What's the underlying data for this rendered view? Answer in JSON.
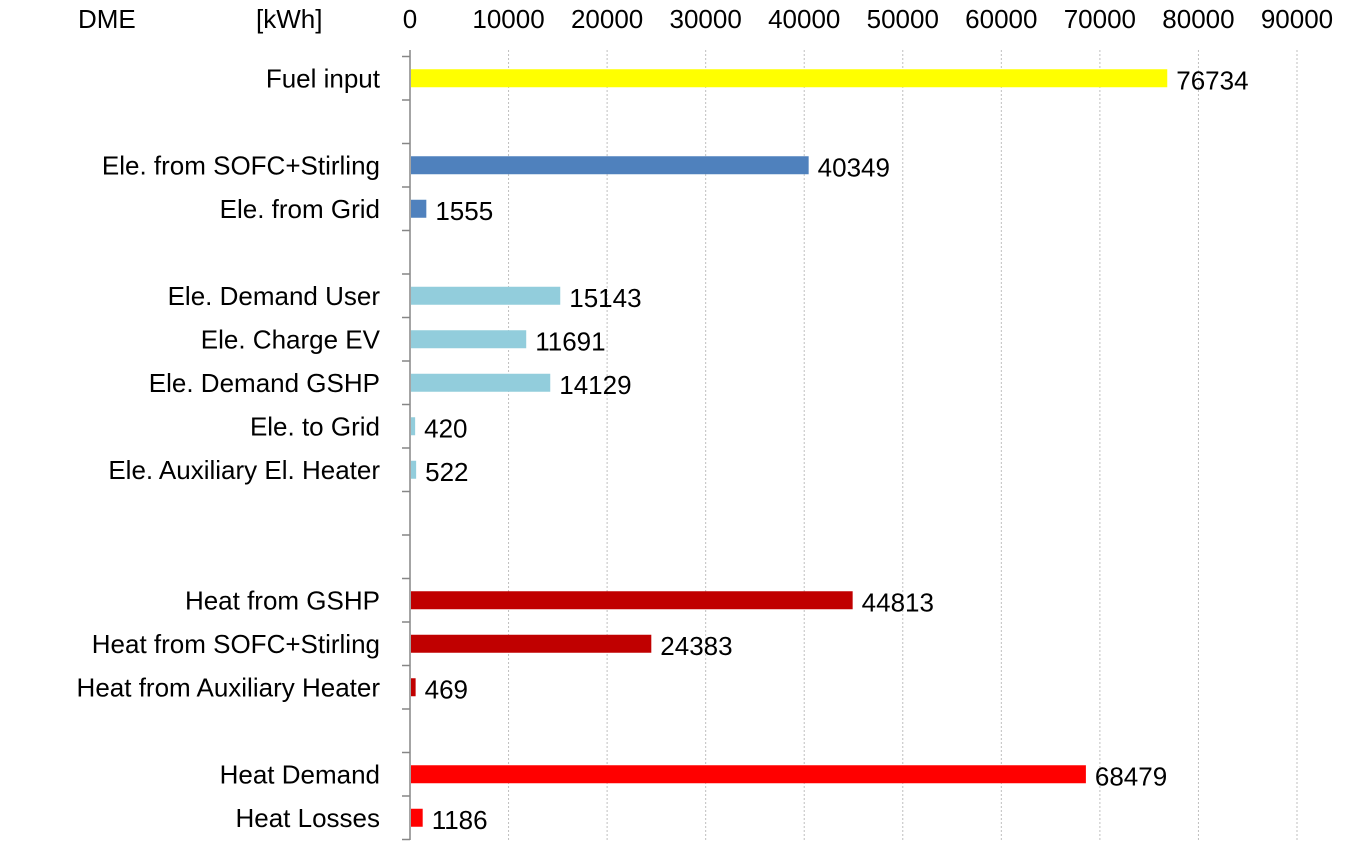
{
  "chart_data": {
    "type": "bar",
    "orientation": "horizontal",
    "header_left": "DME",
    "unit_label": "[kWh]",
    "xlim": [
      0,
      90000
    ],
    "xticks": [
      0,
      10000,
      20000,
      30000,
      40000,
      50000,
      60000,
      70000,
      80000,
      90000
    ],
    "xtick_labels": [
      "0",
      "10000",
      "20000",
      "30000",
      "40000",
      "50000",
      "60000",
      "70000",
      "80000",
      "90000"
    ],
    "x_axis_position": "top",
    "grid": "vertical-dashed",
    "legend": "none",
    "rows": [
      {
        "category": "Fuel input",
        "value": 76734,
        "label": "76734",
        "color": "#ffff00"
      },
      {
        "category": "",
        "value": null
      },
      {
        "category": "Ele. from SOFC+Stirling",
        "value": 40349,
        "label": "40349",
        "color": "#4f81bd"
      },
      {
        "category": "Ele. from Grid",
        "value": 1555,
        "label": "1555",
        "color": "#4f81bd"
      },
      {
        "category": "",
        "value": null
      },
      {
        "category": "Ele. Demand User",
        "value": 15143,
        "label": "15143",
        "color": "#92cddc"
      },
      {
        "category": "Ele. Charge EV",
        "value": 11691,
        "label": "11691",
        "color": "#92cddc"
      },
      {
        "category": "Ele. Demand GSHP",
        "value": 14129,
        "label": "14129",
        "color": "#92cddc"
      },
      {
        "category": "Ele. to Grid",
        "value": 420,
        "label": "420",
        "color": "#92cddc"
      },
      {
        "category": "Ele. Auxiliary El. Heater",
        "value": 522,
        "label": "522",
        "color": "#92cddc"
      },
      {
        "category": "",
        "value": null
      },
      {
        "category": "",
        "value": null
      },
      {
        "category": "Heat from GSHP",
        "value": 44813,
        "label": "44813",
        "color": "#c00000"
      },
      {
        "category": "Heat from SOFC+Stirling",
        "value": 24383,
        "label": "24383",
        "color": "#c00000"
      },
      {
        "category": "Heat from Auxiliary Heater",
        "value": 469,
        "label": "469",
        "color": "#c00000"
      },
      {
        "category": "",
        "value": null
      },
      {
        "category": "Heat Demand",
        "value": 68479,
        "label": "68479",
        "color": "#ff0000"
      },
      {
        "category": "Heat Losses",
        "value": 1186,
        "label": "1186",
        "color": "#ff0000"
      }
    ]
  }
}
